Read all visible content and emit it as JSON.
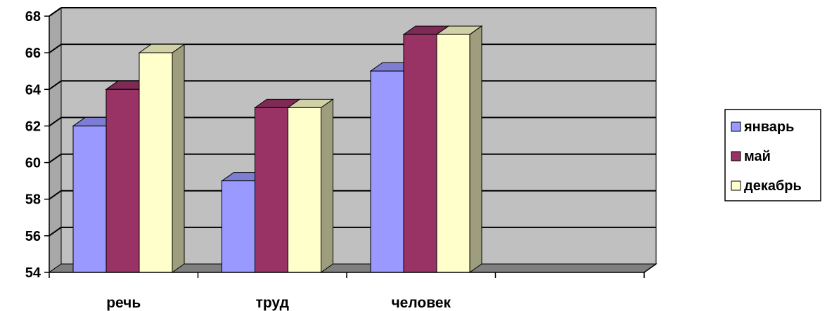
{
  "chart_data": {
    "type": "bar",
    "categories": [
      "речь",
      "труд",
      "человек",
      ""
    ],
    "series": [
      {
        "name": "январь",
        "values": [
          62,
          59,
          65,
          null
        ],
        "color": "#9999ff"
      },
      {
        "name": "май",
        "values": [
          64,
          63,
          67,
          null
        ],
        "color": "#993366"
      },
      {
        "name": "декабрь",
        "values": [
          66,
          63,
          67,
          null
        ],
        "color": "#ffffcc"
      }
    ],
    "ylim": [
      54,
      68
    ],
    "yticks": [
      54,
      56,
      58,
      60,
      62,
      64,
      66,
      68
    ],
    "grid": true,
    "legend_position": "right",
    "style": "3d-clustered-column",
    "wall_color": "#c0c0c0",
    "floor_color": "#808080"
  }
}
